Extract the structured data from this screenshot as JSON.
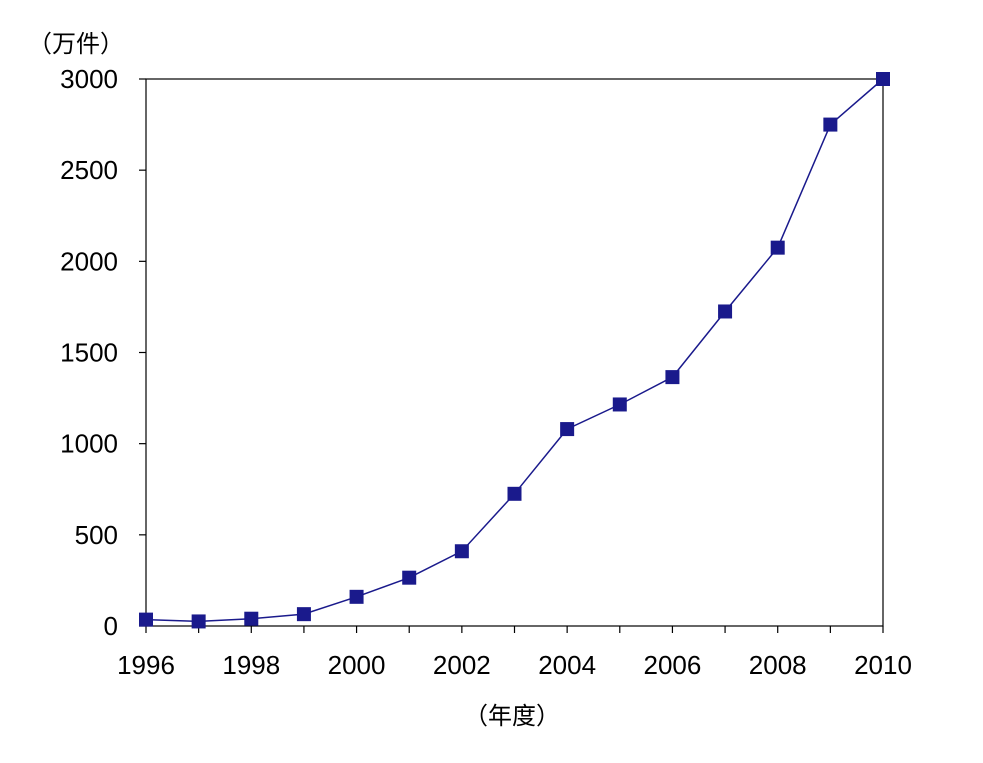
{
  "chart_data": {
    "type": "line",
    "title": "",
    "xlabel": "（年度）",
    "ylabel": "（万件）",
    "x": [
      1996,
      1997,
      1998,
      1999,
      2000,
      2001,
      2002,
      2003,
      2004,
      2005,
      2006,
      2007,
      2008,
      2009,
      2010
    ],
    "series": [
      {
        "values": [
          35,
          25,
          40,
          65,
          160,
          265,
          410,
          725,
          1080,
          1215,
          1365,
          1725,
          2075,
          2750,
          3000
        ]
      }
    ],
    "xlim": [
      1996,
      2010
    ],
    "ylim": [
      0,
      3000
    ],
    "x_ticks": [
      "1996",
      "1998",
      "2000",
      "2002",
      "2004",
      "2006",
      "2008",
      "2010"
    ],
    "y_ticks": [
      "0",
      "500",
      "1000",
      "1500",
      "2000",
      "2500",
      "3000"
    ],
    "grid": false,
    "legend": "none",
    "marker": "square",
    "colors": {
      "series": "#1a1a8c",
      "axis": "#000000"
    }
  }
}
